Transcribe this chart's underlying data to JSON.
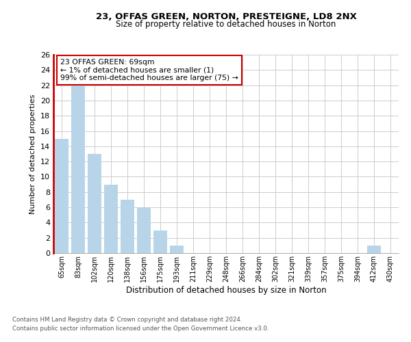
{
  "title1": "23, OFFAS GREEN, NORTON, PRESTEIGNE, LD8 2NX",
  "title2": "Size of property relative to detached houses in Norton",
  "xlabel": "Distribution of detached houses by size in Norton",
  "ylabel": "Number of detached properties",
  "categories": [
    "65sqm",
    "83sqm",
    "102sqm",
    "120sqm",
    "138sqm",
    "156sqm",
    "175sqm",
    "193sqm",
    "211sqm",
    "229sqm",
    "248sqm",
    "266sqm",
    "284sqm",
    "302sqm",
    "321sqm",
    "339sqm",
    "357sqm",
    "375sqm",
    "394sqm",
    "412sqm",
    "430sqm"
  ],
  "values": [
    15,
    22,
    13,
    9,
    7,
    6,
    3,
    1,
    0,
    0,
    0,
    0,
    0,
    0,
    0,
    0,
    0,
    0,
    0,
    1,
    0
  ],
  "bar_color": "#b8d4e8",
  "highlight_color": "#cc0000",
  "ylim": [
    0,
    26
  ],
  "yticks": [
    0,
    2,
    4,
    6,
    8,
    10,
    12,
    14,
    16,
    18,
    20,
    22,
    24,
    26
  ],
  "annotation_title": "23 OFFAS GREEN: 69sqm",
  "annotation_line1": "← 1% of detached houses are smaller (1)",
  "annotation_line2": "99% of semi-detached houses are larger (75) →",
  "annotation_box_color": "#ffffff",
  "annotation_box_edge": "#cc0000",
  "footnote1": "Contains HM Land Registry data © Crown copyright and database right 2024.",
  "footnote2": "Contains public sector information licensed under the Open Government Licence v3.0.",
  "background_color": "#ffffff",
  "grid_color": "#cccccc"
}
